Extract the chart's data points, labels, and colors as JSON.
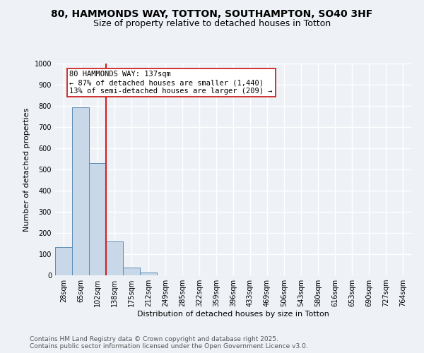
{
  "title": "80, HAMMONDS WAY, TOTTON, SOUTHAMPTON, SO40 3HF",
  "subtitle": "Size of property relative to detached houses in Totton",
  "xlabel": "Distribution of detached houses by size in Totton",
  "ylabel": "Number of detached properties",
  "categories": [
    "28sqm",
    "65sqm",
    "102sqm",
    "138sqm",
    "175sqm",
    "212sqm",
    "249sqm",
    "285sqm",
    "322sqm",
    "359sqm",
    "396sqm",
    "433sqm",
    "469sqm",
    "506sqm",
    "543sqm",
    "580sqm",
    "616sqm",
    "653sqm",
    "690sqm",
    "727sqm",
    "764sqm"
  ],
  "values": [
    133,
    793,
    530,
    160,
    37,
    12,
    0,
    0,
    0,
    0,
    0,
    0,
    0,
    0,
    0,
    0,
    0,
    0,
    0,
    0,
    0
  ],
  "bar_color": "#c8d8e8",
  "bar_edge_color": "#5b8db8",
  "vline_color": "#cc2222",
  "annotation_text": "80 HAMMONDS WAY: 137sqm\n← 87% of detached houses are smaller (1,440)\n13% of semi-detached houses are larger (209) →",
  "annotation_box_color": "#ffffff",
  "annotation_box_edge": "#cc2222",
  "ylim": [
    0,
    1000
  ],
  "yticks": [
    0,
    100,
    200,
    300,
    400,
    500,
    600,
    700,
    800,
    900,
    1000
  ],
  "footer_line1": "Contains HM Land Registry data © Crown copyright and database right 2025.",
  "footer_line2": "Contains public sector information licensed under the Open Government Licence v3.0.",
  "background_color": "#eef2f7",
  "grid_color": "#ffffff",
  "title_fontsize": 10,
  "subtitle_fontsize": 9,
  "axis_label_fontsize": 8,
  "tick_fontsize": 7,
  "footer_fontsize": 6.5,
  "annotation_fontsize": 7.5
}
